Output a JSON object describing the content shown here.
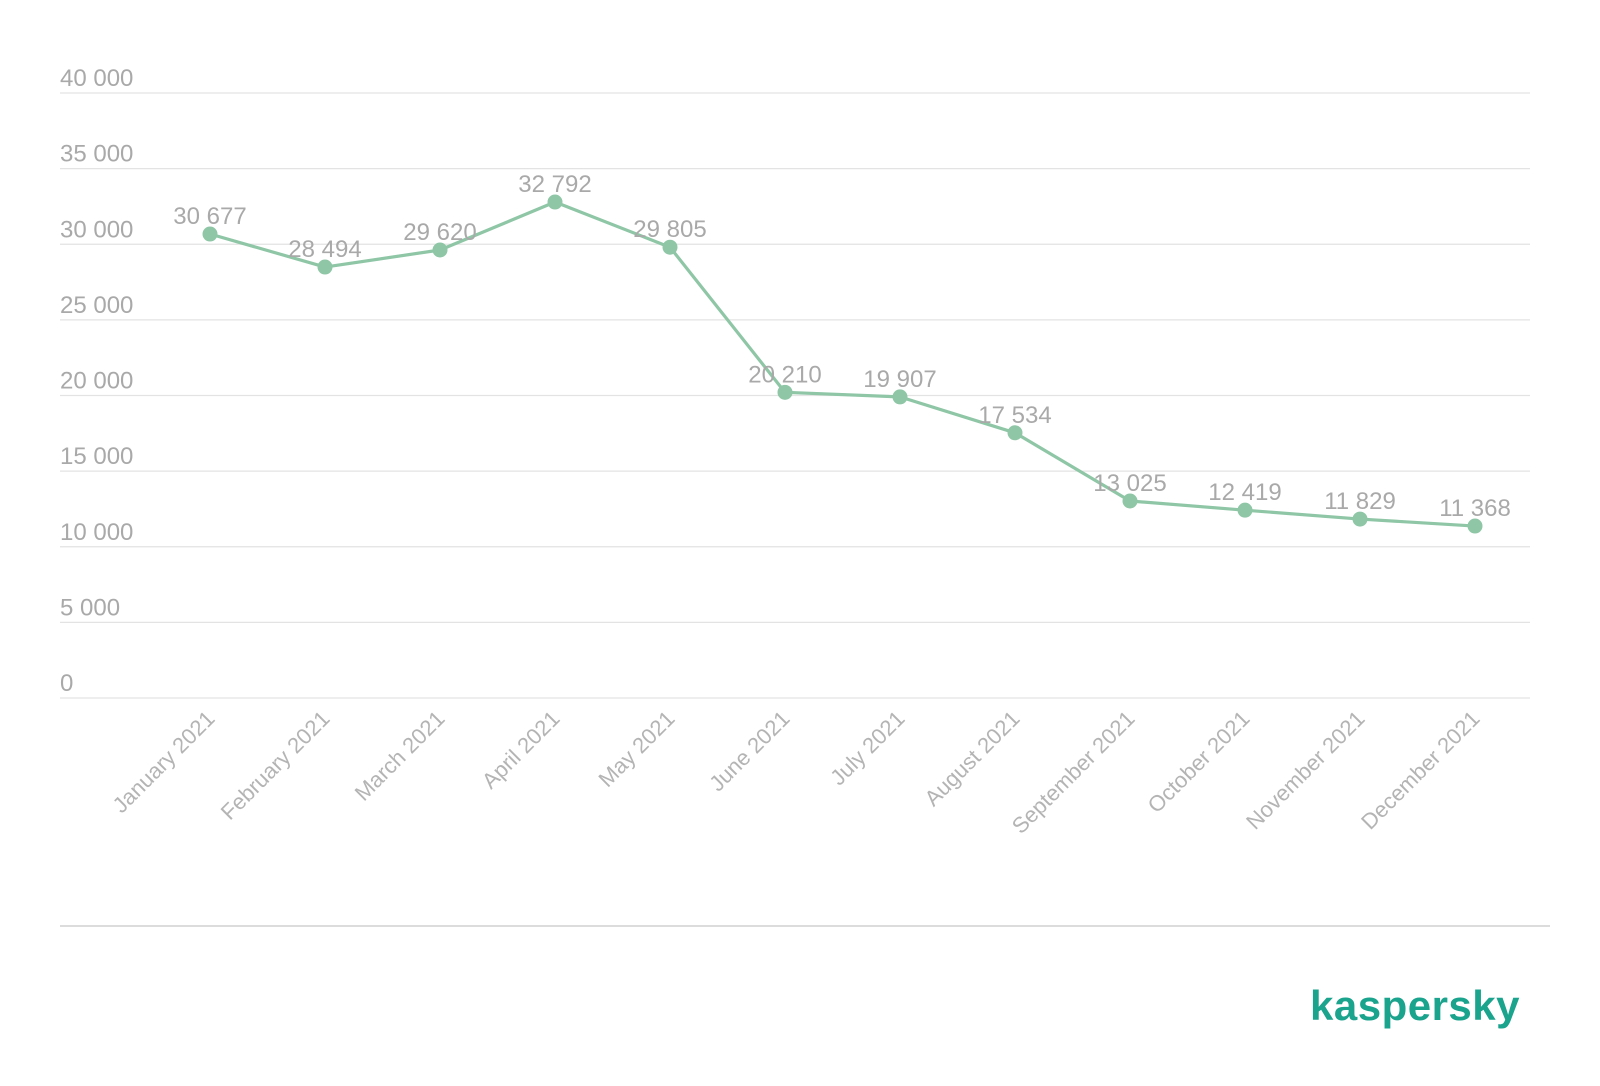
{
  "brand": {
    "logo_text": "kaspersky",
    "color": "#1aa38d"
  },
  "colors": {
    "series": "#8ec6a6",
    "grid": "#e3e3e3",
    "text": "#a9a9a9",
    "divider": "#dcdcdc"
  },
  "chart_data": {
    "type": "line",
    "title": "",
    "xlabel": "",
    "ylabel": "",
    "categories": [
      "January 2021",
      "February 2021",
      "March 2021",
      "April 2021",
      "May 2021",
      "June 2021",
      "July 2021",
      "August 2021",
      "September 2021",
      "October 2021",
      "November 2021",
      "December 2021"
    ],
    "series": [
      {
        "values": [
          30677,
          28494,
          29620,
          32792,
          29805,
          20210,
          19907,
          17534,
          13025,
          12419,
          11829,
          11368
        ],
        "labels": [
          "30 677",
          "28 494",
          "29 620",
          "32 792",
          "29 805",
          "20 210",
          "19 907",
          "17 534",
          "13 025",
          "12 419",
          "11 829",
          "11 368"
        ]
      }
    ],
    "ylim": [
      0,
      40000
    ],
    "yticks": [
      0,
      5000,
      10000,
      15000,
      20000,
      25000,
      30000,
      35000,
      40000
    ],
    "ytick_labels": [
      "0",
      "5 000",
      "10 000",
      "15 000",
      "20 000",
      "25 000",
      "30 000",
      "35 000",
      "40 000"
    ],
    "grid": true,
    "legend": "none",
    "markers": true,
    "data_labels": true
  }
}
